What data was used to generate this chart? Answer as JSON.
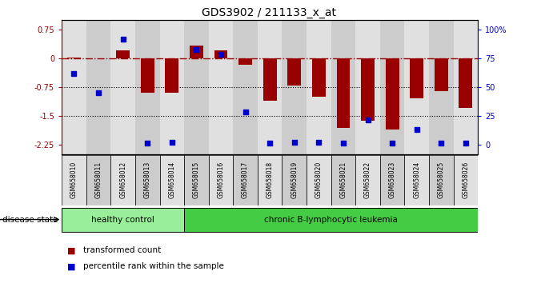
{
  "title": "GDS3902 / 211133_x_at",
  "samples": [
    "GSM658010",
    "GSM658011",
    "GSM658012",
    "GSM658013",
    "GSM658014",
    "GSM658015",
    "GSM658016",
    "GSM658017",
    "GSM658018",
    "GSM658019",
    "GSM658020",
    "GSM658021",
    "GSM658022",
    "GSM658023",
    "GSM658024",
    "GSM658025",
    "GSM658026"
  ],
  "red_bars": [
    0.02,
    0.0,
    0.2,
    -0.9,
    -0.9,
    0.32,
    0.2,
    -0.18,
    -1.1,
    -0.72,
    -1.0,
    -1.82,
    -1.62,
    -1.85,
    -1.05,
    -0.85,
    -1.3
  ],
  "blue_dots": [
    -0.4,
    -0.9,
    0.5,
    -2.22,
    -2.18,
    0.22,
    0.1,
    -1.4,
    -2.22,
    -2.18,
    -2.18,
    -2.22,
    -1.6,
    -2.22,
    -1.85,
    -2.22,
    -2.22
  ],
  "healthy_control_count": 5,
  "ylim": [
    -2.5,
    1.0
  ],
  "yticks_left": [
    0.75,
    0.0,
    -0.75,
    -1.5,
    -2.25
  ],
  "ytick_labels_left": [
    "0.75",
    "0",
    "-0.75",
    "-1.5",
    "-2.25"
  ],
  "ytick_right_positions": [
    0.75,
    0.0,
    -0.75,
    -1.5,
    -2.25
  ],
  "ytick_labels_right": [
    "100%",
    "75",
    "50",
    "25",
    "0"
  ],
  "dotted_lines": [
    -0.75,
    -1.5
  ],
  "bar_color": "#990000",
  "dot_color": "#0000cc",
  "healthy_color": "#99ee99",
  "leukemia_color": "#44cc44",
  "col_bg_even": "#e0e0e0",
  "col_bg_odd": "#cccccc",
  "background_color": "#ffffff",
  "legend_label_red": "transformed count",
  "legend_label_blue": "percentile rank within the sample",
  "disease_label": "disease state",
  "healthy_label": "healthy control",
  "leukemia_label": "chronic B-lymphocytic leukemia"
}
